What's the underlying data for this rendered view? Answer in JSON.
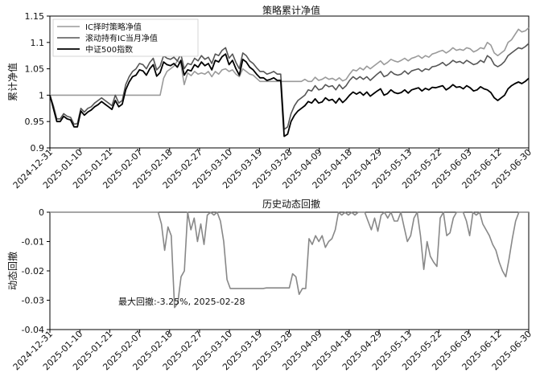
{
  "chart_data": [
    {
      "type": "line",
      "title": "策略累计净值",
      "ylabel": "累计净值",
      "ylim": [
        0.9,
        1.15
      ],
      "yticks": [
        0.9,
        0.95,
        1,
        1.05,
        1.1,
        1.15
      ],
      "ytick_labels": [
        "0.9",
        "0.95",
        "1",
        "1.05",
        "1.1",
        "1.15"
      ],
      "xticks": [
        "2024-12-31",
        "2025-01-10",
        "2025-01-21",
        "2025-02-07",
        "2025-02-18",
        "2025-02-27",
        "2025-03-10",
        "2025-03-19",
        "2025-03-28",
        "2025-04-09",
        "2025-04-18",
        "2025-04-29",
        "2025-05-13",
        "2025-05-22",
        "2025-06-03",
        "2025-06-12",
        "2025-06-30"
      ],
      "legend_position": "top-left",
      "series": [
        {
          "name": "IC择时策略净值",
          "color": "#9a9a9a",
          "width": 1.6,
          "values": [
            1.0,
            1.0,
            1.0,
            1.0,
            1.0,
            1.0,
            1.0,
            1.0,
            1.0,
            1.0,
            1.0,
            1.0,
            1.0,
            1.0,
            1.0,
            1.0,
            1.0,
            1.0,
            1.0,
            1.0,
            1.0,
            1.0,
            1.0,
            1.0,
            1.0,
            1.0,
            1.0,
            1.0,
            1.0,
            1.0,
            1.0,
            1.0,
            1.0,
            1.032,
            1.045,
            1.05,
            1.055,
            1.065,
            1.06,
            1.02,
            1.042,
            1.037,
            1.045,
            1.04,
            1.042,
            1.04,
            1.045,
            1.035,
            1.045,
            1.04,
            1.048,
            1.05,
            1.045,
            1.048,
            1.04,
            1.035,
            1.05,
            1.045,
            1.04,
            1.038,
            1.032,
            1.026,
            1.026,
            1.026,
            1.026,
            1.026,
            1.026,
            1.026,
            1.026,
            1.026,
            1.026,
            1.026,
            1.026,
            1.026,
            1.03,
            1.026,
            1.026,
            1.034,
            1.028,
            1.03,
            1.034,
            1.03,
            1.032,
            1.028,
            1.033,
            1.027,
            1.03,
            1.04,
            1.048,
            1.046,
            1.052,
            1.048,
            1.055,
            1.05,
            1.055,
            1.06,
            1.065,
            1.058,
            1.062,
            1.068,
            1.065,
            1.063,
            1.066,
            1.07,
            1.065,
            1.07,
            1.072,
            1.075,
            1.07,
            1.075,
            1.072,
            1.078,
            1.08,
            1.083,
            1.085,
            1.08,
            1.084,
            1.09,
            1.085,
            1.087,
            1.085,
            1.09,
            1.088,
            1.082,
            1.085,
            1.09,
            1.088,
            1.1,
            1.095,
            1.08,
            1.075,
            1.08,
            1.085,
            1.1,
            1.105,
            1.115,
            1.125,
            1.12,
            1.122,
            1.128
          ]
        },
        {
          "name": "滚动持有IC当月净值",
          "color": "#555555",
          "width": 1.6,
          "values": [
            1.0,
            0.98,
            0.955,
            0.955,
            0.965,
            0.96,
            0.958,
            0.945,
            0.946,
            0.975,
            0.968,
            0.975,
            0.978,
            0.985,
            0.99,
            0.995,
            0.99,
            0.985,
            0.98,
            1.0,
            0.985,
            0.99,
            1.02,
            1.035,
            1.045,
            1.05,
            1.06,
            1.058,
            1.05,
            1.062,
            1.07,
            1.048,
            1.055,
            1.075,
            1.07,
            1.068,
            1.072,
            1.065,
            1.078,
            1.05,
            1.06,
            1.058,
            1.07,
            1.065,
            1.075,
            1.068,
            1.072,
            1.06,
            1.078,
            1.075,
            1.085,
            1.09,
            1.07,
            1.078,
            1.062,
            1.05,
            1.08,
            1.075,
            1.065,
            1.06,
            1.052,
            1.045,
            1.045,
            1.04,
            1.042,
            1.045,
            1.04,
            1.04,
            0.935,
            0.94,
            0.965,
            0.98,
            0.99,
            0.995,
            1.0,
            1.01,
            1.008,
            1.018,
            1.01,
            1.012,
            1.02,
            1.016,
            1.018,
            1.01,
            1.02,
            1.012,
            1.018,
            1.028,
            1.035,
            1.03,
            1.035,
            1.03,
            1.035,
            1.028,
            1.034,
            1.04,
            1.045,
            1.035,
            1.038,
            1.045,
            1.04,
            1.038,
            1.04,
            1.046,
            1.04,
            1.046,
            1.048,
            1.05,
            1.045,
            1.05,
            1.048,
            1.054,
            1.055,
            1.058,
            1.062,
            1.056,
            1.06,
            1.066,
            1.062,
            1.064,
            1.06,
            1.066,
            1.062,
            1.058,
            1.06,
            1.066,
            1.062,
            1.075,
            1.07,
            1.058,
            1.054,
            1.058,
            1.064,
            1.075,
            1.08,
            1.085,
            1.09,
            1.088,
            1.092,
            1.098
          ]
        },
        {
          "name": "中证500指数",
          "color": "#000000",
          "width": 1.8,
          "values": [
            1.0,
            0.975,
            0.95,
            0.95,
            0.96,
            0.955,
            0.953,
            0.94,
            0.94,
            0.97,
            0.962,
            0.968,
            0.972,
            0.978,
            0.982,
            0.988,
            0.983,
            0.978,
            0.973,
            0.99,
            0.978,
            0.983,
            1.01,
            1.025,
            1.035,
            1.038,
            1.048,
            1.046,
            1.038,
            1.05,
            1.058,
            1.036,
            1.043,
            1.063,
            1.058,
            1.056,
            1.06,
            1.053,
            1.066,
            1.038,
            1.048,
            1.046,
            1.058,
            1.053,
            1.063,
            1.056,
            1.06,
            1.048,
            1.066,
            1.063,
            1.073,
            1.078,
            1.058,
            1.066,
            1.05,
            1.038,
            1.068,
            1.063,
            1.053,
            1.048,
            1.04,
            1.033,
            1.033,
            1.028,
            1.03,
            1.033,
            1.028,
            1.028,
            0.922,
            0.926,
            0.95,
            0.962,
            0.97,
            0.975,
            0.98,
            0.988,
            0.985,
            0.993,
            0.985,
            0.987,
            0.995,
            0.99,
            0.992,
            0.985,
            0.994,
            0.986,
            0.992,
            1.0,
            1.006,
            1.002,
            1.006,
            1.0,
            1.006,
            0.998,
            1.003,
            1.008,
            1.012,
            1.0,
            1.003,
            1.01,
            1.005,
            1.003,
            1.005,
            1.01,
            1.004,
            1.01,
            1.012,
            1.014,
            1.008,
            1.013,
            1.01,
            1.015,
            1.014,
            1.016,
            1.018,
            1.01,
            1.014,
            1.02,
            1.015,
            1.016,
            1.012,
            1.018,
            1.014,
            1.008,
            1.01,
            1.016,
            1.012,
            1.01,
            1.005,
            0.995,
            0.99,
            0.995,
            1.0,
            1.012,
            1.018,
            1.022,
            1.025,
            1.022,
            1.026,
            1.032
          ]
        }
      ]
    },
    {
      "type": "line",
      "title": "历史动态回撤",
      "ylabel": "动态回撤",
      "ylim": [
        -0.04,
        0
      ],
      "yticks": [
        -0.04,
        -0.03,
        -0.02,
        -0.01,
        0
      ],
      "ytick_labels": [
        "-0.04",
        "-0.03",
        "-0.02",
        "-0.01",
        "0"
      ],
      "xticks": [
        "2024-12-31",
        "2025-01-10",
        "2025-01-21",
        "2025-02-07",
        "2025-02-18",
        "2025-02-27",
        "2025-03-10",
        "2025-03-19",
        "2025-03-28",
        "2025-04-09",
        "2025-04-18",
        "2025-04-29",
        "2025-05-13",
        "2025-05-22",
        "2025-06-03",
        "2025-06-12",
        "2025-06-30"
      ],
      "annotation": "最大回撤:-3.25%, 2025-02-28",
      "series": [
        {
          "name": "",
          "color": "#888888",
          "width": 1.6,
          "values": [
            0,
            0,
            0,
            0,
            0,
            0,
            0,
            0,
            0,
            0,
            0,
            0,
            0,
            0,
            0,
            0,
            0,
            0,
            0,
            0,
            0,
            0,
            0,
            0,
            0,
            0,
            0,
            0,
            0,
            0,
            0,
            0,
            0,
            0,
            -0.004,
            -0.013,
            -0.005,
            -0.008,
            -0.0325,
            -0.031,
            -0.022,
            -0.02,
            0,
            -0.006,
            -0.002,
            -0.01,
            -0.004,
            -0.011,
            -0.001,
            0,
            -0.001,
            0,
            -0.003,
            -0.01,
            -0.023,
            -0.026,
            -0.026,
            -0.026,
            -0.026,
            -0.026,
            -0.026,
            -0.026,
            -0.026,
            -0.026,
            -0.026,
            -0.026,
            -0.0258,
            -0.0258,
            -0.0258,
            -0.0258,
            -0.0258,
            -0.0258,
            -0.0258,
            -0.0258,
            -0.021,
            -0.022,
            -0.028,
            -0.026,
            -0.026,
            -0.009,
            -0.011,
            -0.008,
            -0.01,
            -0.008,
            -0.012,
            -0.01,
            -0.009,
            -0.006,
            0,
            -0.001,
            0,
            -0.001,
            0,
            -0.001,
            0,
            0,
            0,
            -0.003,
            -0.006,
            -0.002,
            -0.0065,
            -0.001,
            0,
            -0.002,
            0,
            -0.003,
            -0.003,
            0,
            -0.005,
            -0.01,
            -0.008,
            -0.002,
            0,
            -0.008,
            -0.0195,
            -0.01,
            -0.015,
            -0.017,
            -0.0185,
            -0.002,
            0,
            -0.008,
            -0.007,
            -0.002,
            0,
            0,
            0,
            -0.003,
            -0.008,
            0,
            -0.001,
            0,
            -0.004,
            -0.006,
            -0.008,
            -0.011,
            -0.013,
            -0.017,
            -0.02,
            -0.022,
            -0.016,
            -0.009,
            -0.003,
            0,
            0,
            0,
            0
          ]
        }
      ]
    }
  ]
}
